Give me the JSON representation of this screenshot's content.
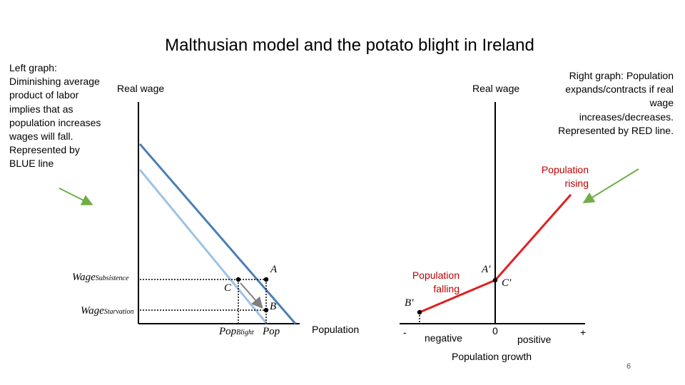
{
  "slide": {
    "title": "Malthusian model and the potato blight in Ireland",
    "page_number": "6"
  },
  "left_note": "Left graph: Diminishing average product of labor implies that as population increases wages will fall. Represented by BLUE line",
  "right_note": "Right graph: Population expands/contracts if real wage increases/decreases. Represented by RED line.",
  "left_graph": {
    "y_axis_label": "Real wage",
    "x_axis_label": "Population",
    "wage_subsistence": {
      "main": "Wage",
      "sub": "Subsistence"
    },
    "wage_starvation": {
      "main": "Wage",
      "sub": "Starvation"
    },
    "pop_blight": {
      "main": "Pop",
      "sub": "Blight"
    },
    "pop": "Pop",
    "point_a": "A",
    "point_b": "B",
    "point_c": "C",
    "colors": {
      "curve": "#4a7fb5",
      "shifted_curve": "#9dc3e6",
      "arrow": "#7f7f7f"
    }
  },
  "right_graph": {
    "y_axis_label": "Real wage",
    "x_axis_label": "Population growth",
    "minus": "-",
    "plus": "+",
    "negative": "negative",
    "positive": "positive",
    "zero": "0",
    "population_rising": "Population rising",
    "population_falling": "Population falling",
    "point_a_prime": "A'",
    "point_b_prime": "B'",
    "point_c_prime": "C'",
    "colors": {
      "line": "#e02020",
      "pointer_arrows": "#70ad47"
    }
  }
}
